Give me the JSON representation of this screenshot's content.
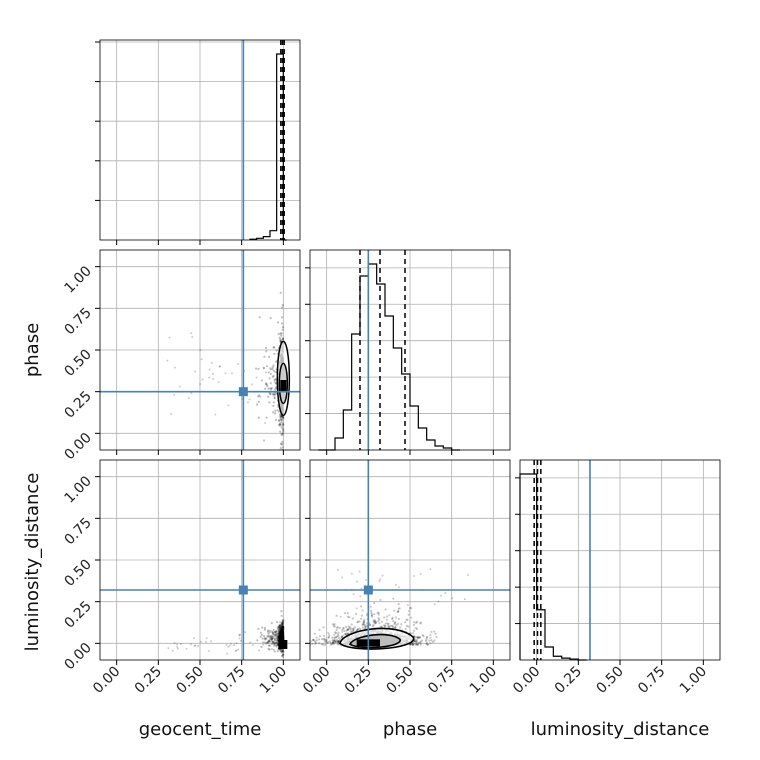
{
  "chart_data": {
    "type": "corner",
    "parameters": [
      "geocent_time",
      "phase",
      "luminosity_distance"
    ],
    "axis_labels": {
      "x": [
        "geocent_time",
        "phase",
        "luminosity_distance"
      ],
      "y": [
        "phase",
        "luminosity_distance"
      ]
    },
    "range": [
      -0.1,
      1.1
    ],
    "ticks": [
      0.0,
      0.25,
      0.5,
      0.75,
      1.0
    ],
    "tick_labels": [
      "0.00",
      "0.25",
      "0.50",
      "0.75",
      "1.00"
    ],
    "grid": true,
    "truths": [
      0.76,
      0.25,
      0.32
    ],
    "colors": {
      "truth": "#4682b4",
      "hist": "#000000",
      "points": "#000000"
    },
    "histograms": [
      {
        "parameter": "geocent_time",
        "bin_edges": [
          0.8,
          0.84,
          0.88,
          0.92,
          0.96,
          1.0,
          1.02
        ],
        "counts": [
          0.4,
          0.9,
          1.8,
          5.0,
          100,
          0
        ],
        "quantiles": [
          0.985,
          0.995,
          1.005
        ]
      },
      {
        "parameter": "phase",
        "bin_edges": [
          -0.05,
          0.0,
          0.05,
          0.1,
          0.15,
          0.2,
          0.25,
          0.3,
          0.35,
          0.4,
          0.45,
          0.5,
          0.55,
          0.6,
          0.65,
          0.7,
          0.75,
          0.8
        ],
        "counts": [
          0,
          0,
          6,
          20,
          58,
          87,
          93,
          83,
          67,
          51,
          38,
          22,
          11,
          5,
          2,
          1,
          0
        ],
        "quantiles": [
          0.2,
          0.32,
          0.47
        ]
      },
      {
        "parameter": "luminosity_distance",
        "bin_edges": [
          -0.1,
          -0.05,
          0.0,
          0.05,
          0.1,
          0.15,
          0.2,
          0.25,
          0.3
        ],
        "counts": [
          100,
          100,
          27,
          7,
          2,
          1,
          0.5,
          0
        ],
        "quantiles": [
          -0.015,
          0.005,
          0.025
        ]
      }
    ]
  }
}
